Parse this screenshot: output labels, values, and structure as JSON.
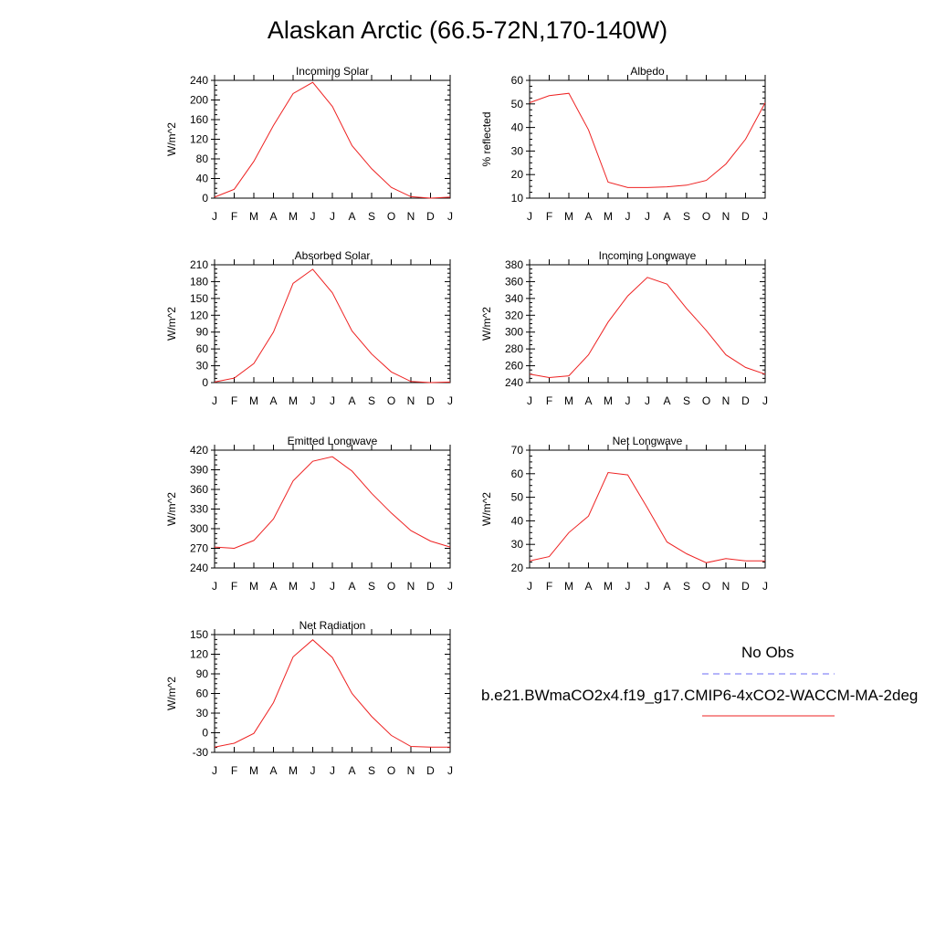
{
  "page": {
    "title": "Alaskan Arctic (66.5-72N,170-140W)"
  },
  "legend": {
    "obs_label": "No Obs",
    "obs_color": "#6b6bf5",
    "model_label": "b.e21.BWmaCO2x4.f19_g17.CMIP6-4xCO2-WACCM-MA-2deg",
    "model_color": "#ee2222"
  },
  "chart_data": [
    {
      "type": "line",
      "title": "Incoming Solar",
      "ylabel": "W/m^2",
      "xlabel": "",
      "categories": [
        "J",
        "F",
        "M",
        "A",
        "M",
        "J",
        "J",
        "A",
        "S",
        "O",
        "N",
        "D",
        "J"
      ],
      "ylim": [
        0,
        240
      ],
      "yticks": [
        0,
        40,
        80,
        120,
        160,
        200,
        240
      ],
      "series": [
        {
          "name": "b.e21.BWmaCO2x4.f19_g17.CMIP6-4xCO2-WACCM-MA-2deg",
          "values": [
            2,
            18,
            75,
            148,
            213,
            236,
            187,
            107,
            60,
            22,
            3,
            0,
            2
          ]
        }
      ]
    },
    {
      "type": "line",
      "title": "Albedo",
      "ylabel": "% reflected",
      "xlabel": "",
      "categories": [
        "J",
        "F",
        "M",
        "A",
        "M",
        "J",
        "J",
        "A",
        "S",
        "O",
        "N",
        "D",
        "J"
      ],
      "ylim": [
        10,
        60
      ],
      "yticks": [
        10,
        20,
        30,
        40,
        50,
        60
      ],
      "series": [
        {
          "name": "b.e21.BWmaCO2x4.f19_g17.CMIP6-4xCO2-WACCM-MA-2deg",
          "values": [
            50.5,
            53.5,
            54.5,
            39,
            16.8,
            14.5,
            14.5,
            14.8,
            15.5,
            17.5,
            24.5,
            35,
            50.5
          ]
        }
      ]
    },
    {
      "type": "line",
      "title": "Absorbed Solar",
      "ylabel": "W/m^2",
      "xlabel": "",
      "categories": [
        "J",
        "F",
        "M",
        "A",
        "M",
        "J",
        "J",
        "A",
        "S",
        "O",
        "N",
        "D",
        "J"
      ],
      "ylim": [
        0,
        210
      ],
      "yticks": [
        0,
        30,
        60,
        90,
        120,
        150,
        180,
        210
      ],
      "series": [
        {
          "name": "b.e21.BWmaCO2x4.f19_g17.CMIP6-4xCO2-WACCM-MA-2deg",
          "values": [
            1,
            8,
            34,
            90,
            177,
            202,
            160,
            92,
            51,
            19,
            2,
            0,
            1
          ]
        }
      ]
    },
    {
      "type": "line",
      "title": "Incoming Longwave",
      "ylabel": "W/m^2",
      "xlabel": "",
      "categories": [
        "J",
        "F",
        "M",
        "A",
        "M",
        "J",
        "J",
        "A",
        "S",
        "O",
        "N",
        "D",
        "J"
      ],
      "ylim": [
        240,
        380
      ],
      "yticks": [
        240,
        260,
        280,
        300,
        320,
        340,
        360,
        380
      ],
      "series": [
        {
          "name": "b.e21.BWmaCO2x4.f19_g17.CMIP6-4xCO2-WACCM-MA-2deg",
          "values": [
            250,
            246,
            248,
            273,
            312,
            343,
            365,
            357,
            328,
            302,
            273,
            258,
            250
          ]
        }
      ]
    },
    {
      "type": "line",
      "title": "Emitted Longwave",
      "ylabel": "W/m^2",
      "xlabel": "",
      "categories": [
        "J",
        "F",
        "M",
        "A",
        "M",
        "J",
        "J",
        "A",
        "S",
        "O",
        "N",
        "D",
        "J"
      ],
      "ylim": [
        240,
        420
      ],
      "yticks": [
        240,
        270,
        300,
        330,
        360,
        390,
        420
      ],
      "series": [
        {
          "name": "b.e21.BWmaCO2x4.f19_g17.CMIP6-4xCO2-WACCM-MA-2deg",
          "values": [
            272,
            270,
            282,
            315,
            373,
            403,
            410,
            388,
            354,
            324,
            297,
            281,
            272
          ]
        }
      ]
    },
    {
      "type": "line",
      "title": "Net Longwave",
      "ylabel": "W/m^2",
      "xlabel": "",
      "categories": [
        "J",
        "F",
        "M",
        "A",
        "M",
        "J",
        "J",
        "A",
        "S",
        "O",
        "N",
        "D",
        "J"
      ],
      "ylim": [
        20,
        70
      ],
      "yticks": [
        20,
        30,
        40,
        50,
        60,
        70
      ],
      "series": [
        {
          "name": "b.e21.BWmaCO2x4.f19_g17.CMIP6-4xCO2-WACCM-MA-2deg",
          "values": [
            23,
            24.8,
            35,
            42,
            60.5,
            59.5,
            45.5,
            31,
            26,
            22.2,
            24,
            23,
            23
          ]
        }
      ]
    },
    {
      "type": "line",
      "title": "Net Radiation",
      "ylabel": "W/m^2",
      "xlabel": "",
      "categories": [
        "J",
        "F",
        "M",
        "A",
        "M",
        "J",
        "J",
        "A",
        "S",
        "O",
        "N",
        "D",
        "J"
      ],
      "ylim": [
        -30,
        150
      ],
      "yticks": [
        -30,
        0,
        30,
        60,
        90,
        120,
        150
      ],
      "series": [
        {
          "name": "b.e21.BWmaCO2x4.f19_g17.CMIP6-4xCO2-WACCM-MA-2deg",
          "values": [
            -22,
            -16,
            -1,
            46,
            116,
            142,
            115,
            60,
            25,
            -4,
            -21,
            -22,
            -22
          ]
        }
      ]
    }
  ]
}
